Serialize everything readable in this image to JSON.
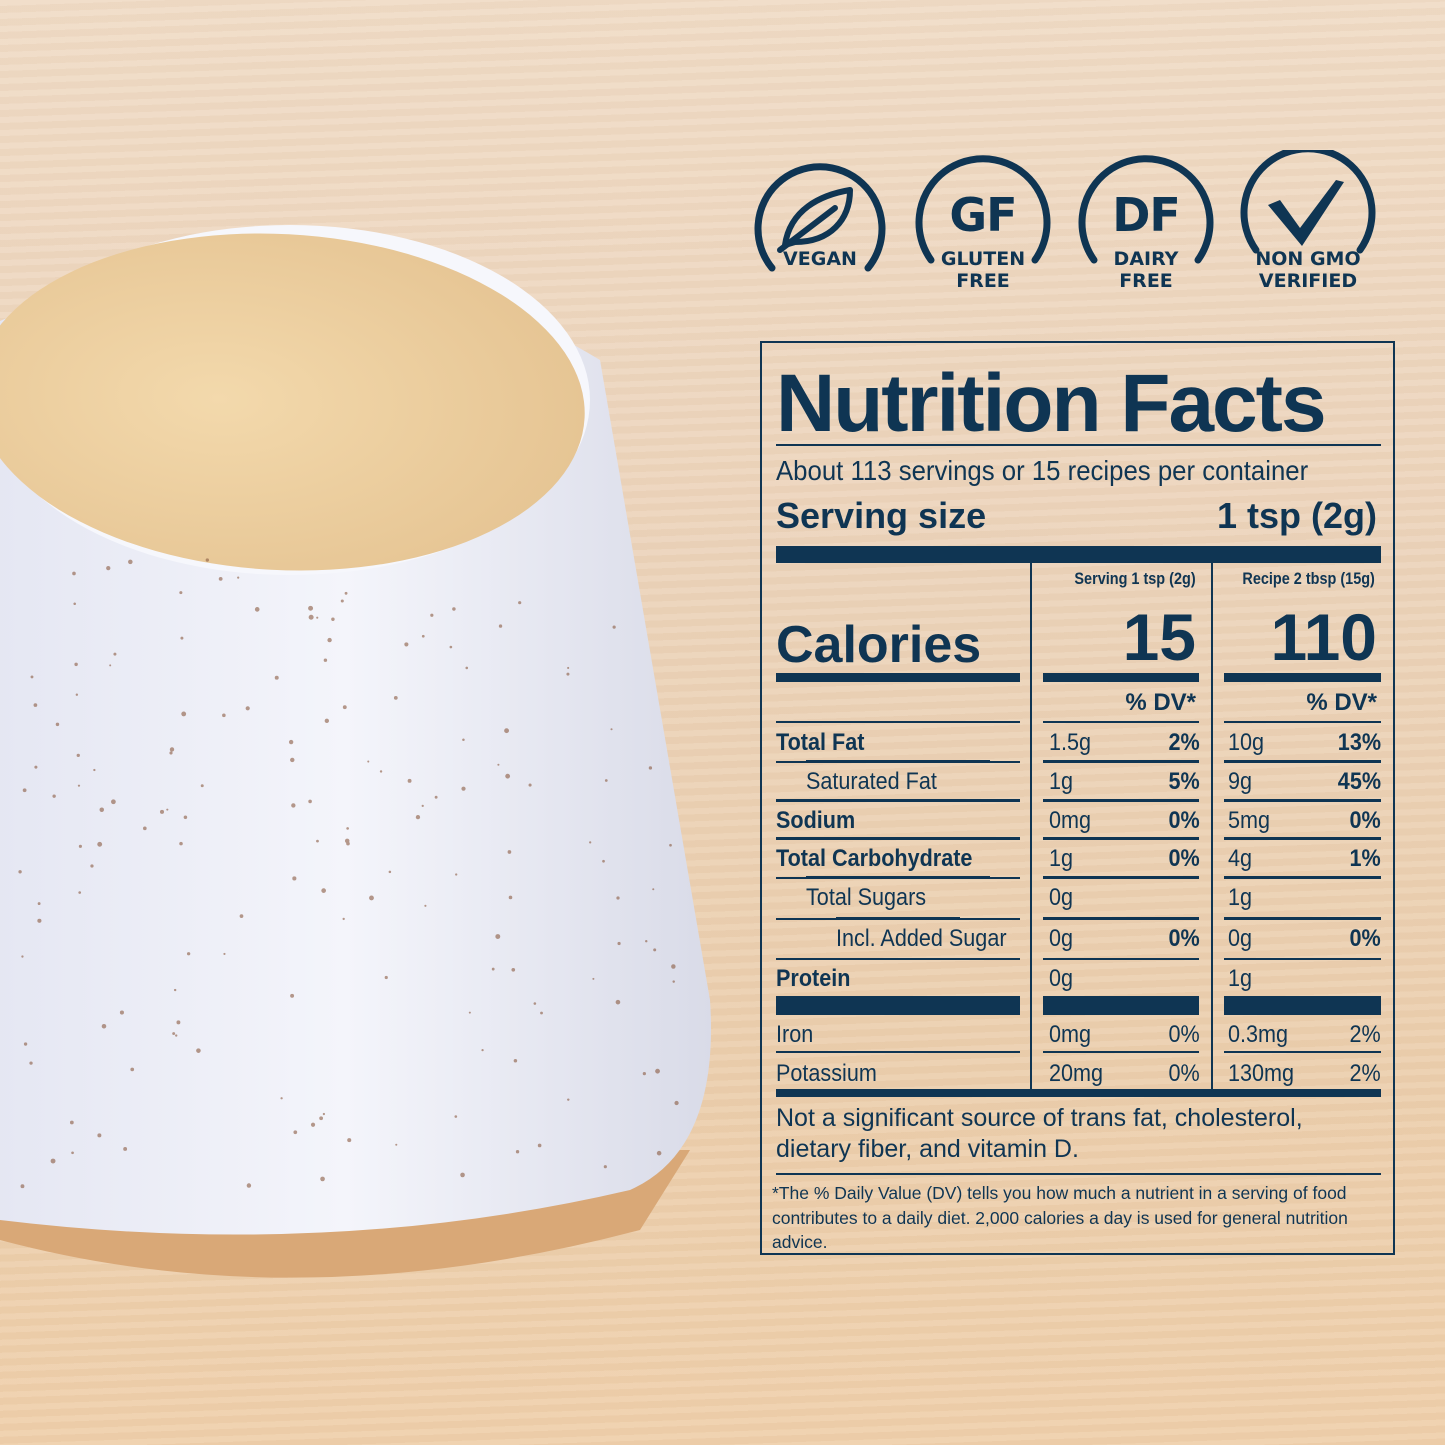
{
  "badges": [
    {
      "icon": "leaf-icon",
      "big": "",
      "caption": [
        "VEGAN"
      ]
    },
    {
      "icon": "",
      "big": "GF",
      "caption": [
        "GLUTEN",
        "FREE"
      ]
    },
    {
      "icon": "",
      "big": "DF",
      "caption": [
        "DAIRY",
        "FREE"
      ]
    },
    {
      "icon": "check-icon",
      "big": "",
      "caption": [
        "NON GMO",
        "VERIFIED"
      ]
    }
  ],
  "label": {
    "title": "Nutrition Facts",
    "servings": "About 113 servings or 15 recipes per container",
    "serving_size_label": "Serving size",
    "serving_size_value": "1 tsp (2g)",
    "col1_header": "Serving 1 tsp (2g)",
    "col2_header": "Recipe 2 tbsp (15g)",
    "calories_label": "Calories",
    "calories_col1": "15",
    "calories_col2": "110",
    "dv_header": "% DV*",
    "rows": [
      {
        "name": "Total Fat",
        "a": "1.5g",
        "a_dv": "2%",
        "b": "10g",
        "b_dv": "13%"
      },
      {
        "name": "Saturated Fat",
        "a": "1g",
        "a_dv": "5%",
        "b": "9g",
        "b_dv": "45%"
      },
      {
        "name": "Sodium",
        "a": "0mg",
        "a_dv": "0%",
        "b": "5mg",
        "b_dv": "0%"
      },
      {
        "name": "Total Carbohydrate",
        "a": "1g",
        "a_dv": "0%",
        "b": "4g",
        "b_dv": "1%"
      },
      {
        "name": "Total Sugars",
        "a": "0g",
        "a_dv": "",
        "b": "1g",
        "b_dv": ""
      },
      {
        "name": "Incl. Added Sugar",
        "a": "0g",
        "a_dv": "0%",
        "b": "0g",
        "b_dv": "0%"
      },
      {
        "name": "Protein",
        "a": "0g",
        "a_dv": "",
        "b": "1g",
        "b_dv": ""
      },
      {
        "name": "Iron",
        "a": "0mg",
        "a_dv": "0%",
        "b": "0.3mg",
        "b_dv": "2%"
      },
      {
        "name": "Potassium",
        "a": "20mg",
        "a_dv": "0%",
        "b": "130mg",
        "b_dv": "2%"
      }
    ],
    "footnote": "Not a significant source of trans fat, cholesterol, dietary fiber, and vitamin D.",
    "fine_print": "*The % Daily Value (DV) tells you how much a nutrient in a serving of food contributes to a daily diet. 2,000 calories a day is used for general nutrition advice."
  },
  "colors": {
    "navy": "#0f3553",
    "background": "#ecd4bb",
    "cup": "#eef0f8"
  }
}
